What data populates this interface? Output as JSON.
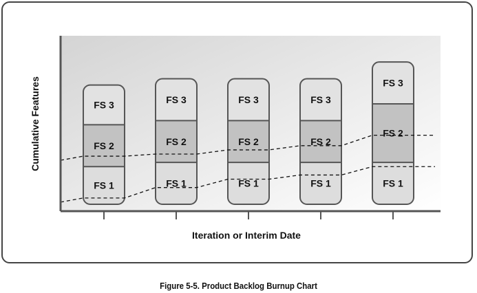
{
  "caption": "Figure 5-5. Product Backlog Burnup Chart",
  "chart_data": {
    "type": "bar",
    "stacked": true,
    "title": "",
    "xlabel": "Iteration or Interim Date",
    "ylabel": "Cumulative Features",
    "categories": [
      "",
      "",
      "",
      "",
      ""
    ],
    "series": [
      {
        "name": "FS 1",
        "values": [
          18,
          20,
          20,
          20,
          20
        ]
      },
      {
        "name": "FS 2",
        "values": [
          20,
          20,
          20,
          20,
          28
        ]
      },
      {
        "name": "FS 3",
        "values": [
          19,
          20,
          20,
          20,
          20
        ]
      }
    ],
    "ylim": [
      0,
      72
    ],
    "lines": [
      {
        "style": "dashed",
        "values": [
          3,
          8,
          12,
          14,
          18
        ]
      },
      {
        "style": "dashed",
        "values": [
          23,
          24,
          26,
          28,
          33
        ]
      }
    ],
    "grid": false,
    "legend": "none",
    "colors": {
      "FS 1": "#dddddd",
      "FS 2": "#c2c2c2",
      "FS 3": "#e2e2e2",
      "border": "#555555",
      "axis": "#555555"
    }
  }
}
